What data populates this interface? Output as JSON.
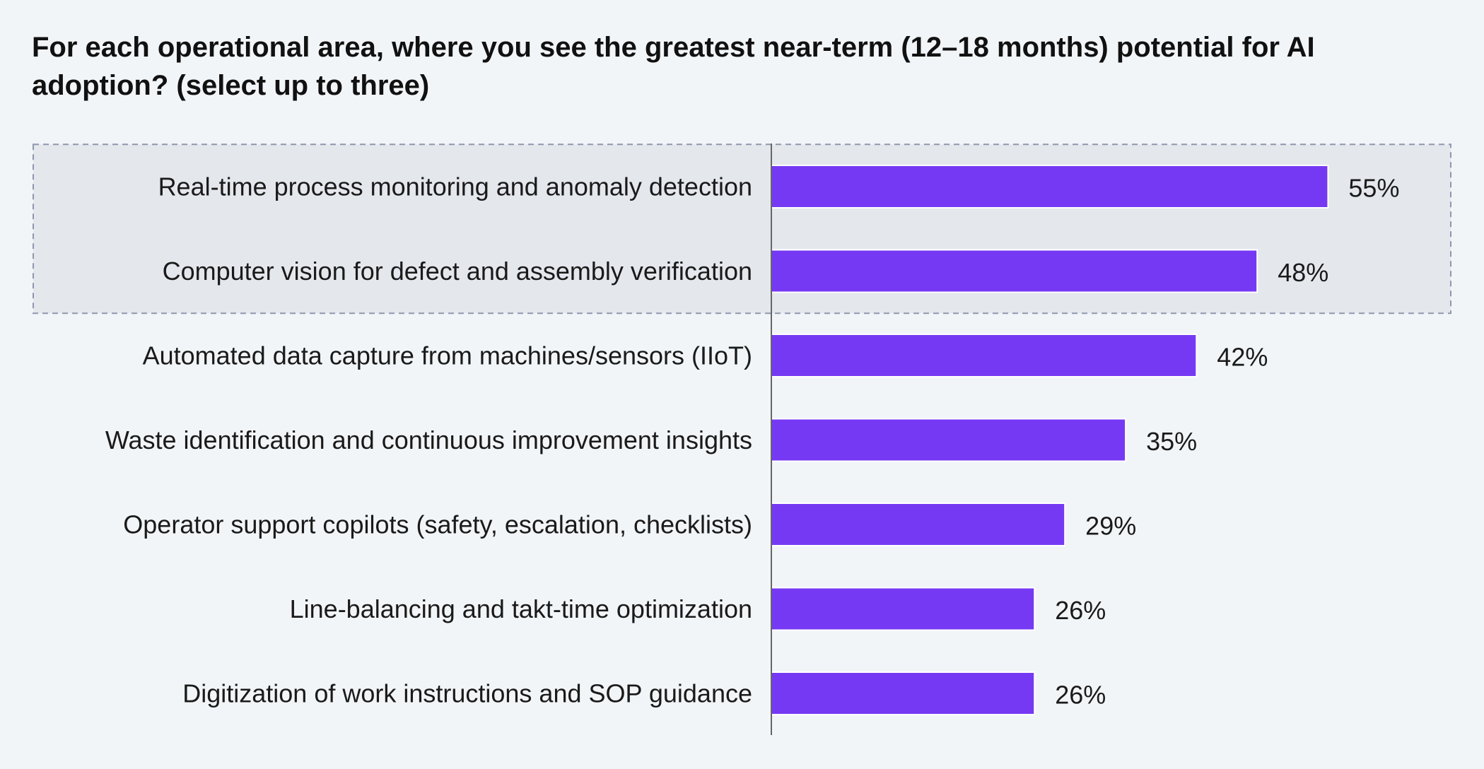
{
  "chart_data": {
    "type": "bar",
    "orientation": "horizontal",
    "title": "For each operational area, where you see the greatest near-term (12–18 months) potential for AI adoption? (select up to three)",
    "categories": [
      "Real-time process monitoring and anomaly detection",
      "Computer vision for defect and assembly verification",
      "Automated data capture from machines/sensors (IIoT)",
      "Waste identification and continuous improvement insights",
      "Operator support copilots (safety, escalation, checklists)",
      "Line-balancing and takt-time optimization",
      "Digitization of work instructions and SOP guidance"
    ],
    "values": [
      55,
      48,
      42,
      35,
      29,
      26,
      26
    ],
    "value_labels": [
      "55%",
      "48%",
      "42%",
      "35%",
      "29%",
      "26%",
      "26%"
    ],
    "highlighted_categories": [
      0,
      1
    ],
    "bar_color": "#7639f3",
    "highlight_color": "#e4e7ec",
    "xlim": [
      0,
      60
    ],
    "grid": false,
    "legend": false
  }
}
